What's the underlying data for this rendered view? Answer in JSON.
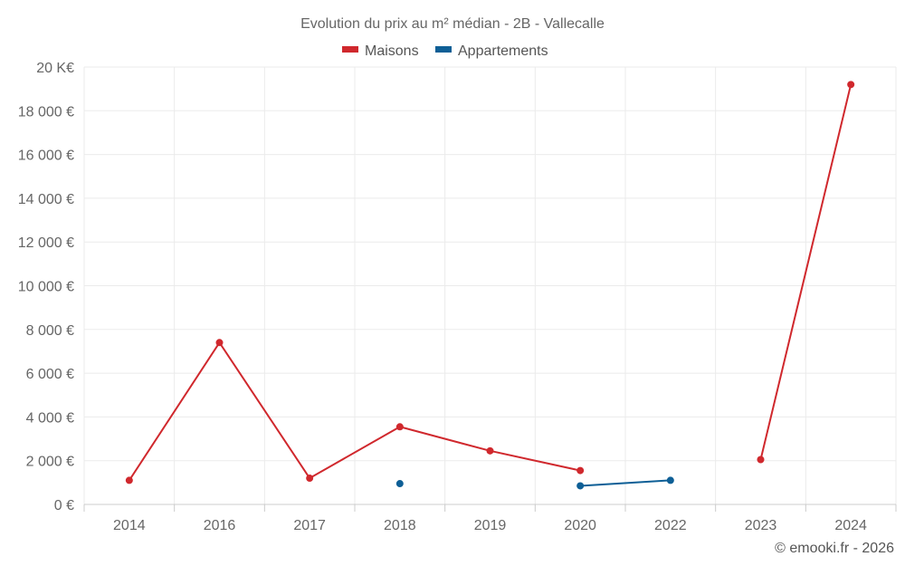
{
  "chart_data": {
    "type": "line",
    "title": "Evolution du prix au m² médian - 2B - Vallecalle",
    "categories": [
      "2014",
      "2016",
      "2017",
      "2018",
      "2019",
      "2020",
      "2022",
      "2023",
      "2024"
    ],
    "series": [
      {
        "name": "Maisons",
        "color": "#d0282d",
        "values": [
          1100,
          7400,
          1200,
          3550,
          2450,
          1550,
          null,
          2050,
          19200
        ]
      },
      {
        "name": "Appartements",
        "color": "#0e5f96",
        "values": [
          null,
          null,
          null,
          950,
          null,
          850,
          1100,
          null,
          null
        ]
      }
    ],
    "ylim": [
      0,
      20000
    ],
    "yticks": [
      {
        "value": 0,
        "label": "0 €"
      },
      {
        "value": 2000,
        "label": "2 000 €"
      },
      {
        "value": 4000,
        "label": "4 000 €"
      },
      {
        "value": 6000,
        "label": "6 000 €"
      },
      {
        "value": 8000,
        "label": "8 000 €"
      },
      {
        "value": 10000,
        "label": "10 000 €"
      },
      {
        "value": 12000,
        "label": "12 000 €"
      },
      {
        "value": 14000,
        "label": "14 000 €"
      },
      {
        "value": 16000,
        "label": "16 000 €"
      },
      {
        "value": 18000,
        "label": "18 000 €"
      },
      {
        "value": 20000,
        "label": "20 K€"
      }
    ],
    "grid": true,
    "legend": "top-center"
  },
  "credit": "© emooki.fr - 2026"
}
